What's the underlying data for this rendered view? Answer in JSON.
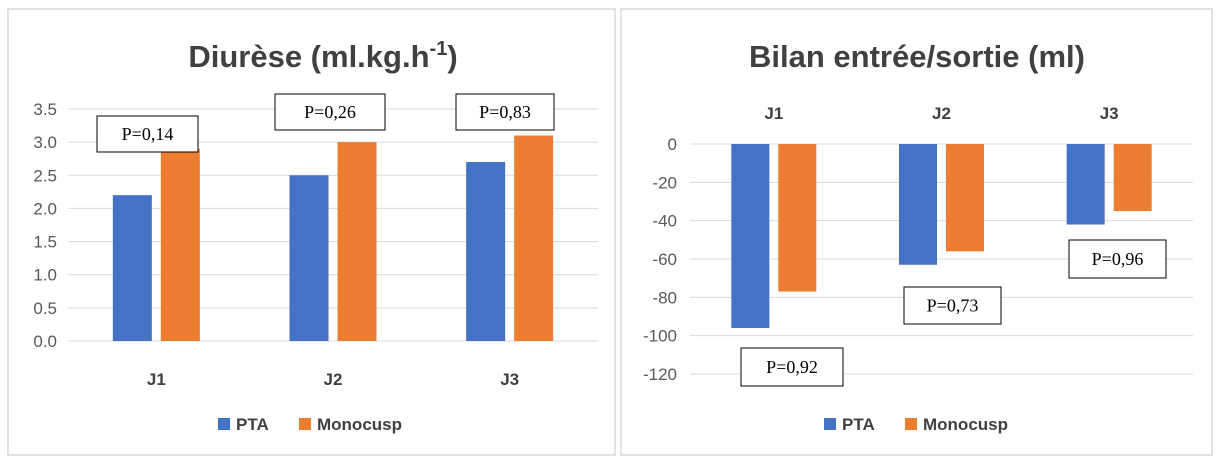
{
  "colors": {
    "pta": "#4472C4",
    "monocusp": "#ED7D31",
    "grid": "#D9D9D9",
    "border": "#D9D9D9"
  },
  "chart_data": [
    {
      "type": "bar",
      "title_main": "Diurèse (ml.kg.h",
      "title_sup": "-1",
      "title_end": ")",
      "categories": [
        "J1",
        "J2",
        "J3"
      ],
      "series": [
        {
          "name": "PTA",
          "values": [
            2.2,
            2.5,
            2.7
          ]
        },
        {
          "name": "Monocusp",
          "values": [
            2.9,
            3.0,
            3.1
          ]
        }
      ],
      "ylim": [
        0,
        3.5
      ],
      "yticks": [
        "0.0",
        "0.5",
        "1.0",
        "1.5",
        "2.0",
        "2.5",
        "3.0",
        "3.5"
      ],
      "grid": true,
      "legend": "bottom",
      "annotations": [
        "P=0,14",
        "P=0,26",
        "P=0,83"
      ]
    },
    {
      "type": "bar",
      "title": "Bilan entrée/sortie (ml)",
      "categories": [
        "J1",
        "J2",
        "J3"
      ],
      "series": [
        {
          "name": "PTA",
          "values": [
            -96,
            -63,
            -42
          ]
        },
        {
          "name": "Monocusp",
          "values": [
            -77,
            -56,
            -35
          ]
        }
      ],
      "ylim": [
        -120,
        0
      ],
      "yticks": [
        "0",
        "-20",
        "-40",
        "-60",
        "-80",
        "-100",
        "-120"
      ],
      "grid": true,
      "legend": "bottom",
      "annotations": [
        "P=0,92",
        "P=0,73",
        "P=0,96"
      ]
    }
  ]
}
